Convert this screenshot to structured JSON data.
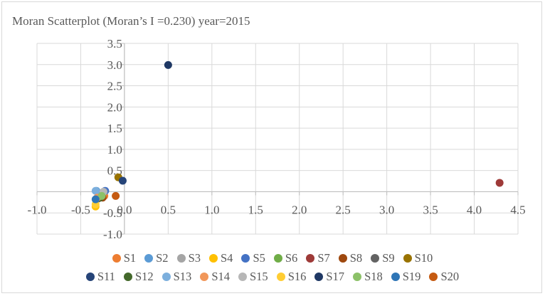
{
  "chart_data": {
    "type": "scatter",
    "title": "Moran Scatterplot (Moran’s I =0.230) year=2015",
    "xlabel": "",
    "ylabel": "",
    "xlim": [
      -1.0,
      4.5
    ],
    "ylim": [
      -1.0,
      3.5
    ],
    "x_ticks": [
      "-1.0",
      "-0.5",
      "0.0",
      "0.5",
      "1.0",
      "1.5",
      "2.0",
      "2.5",
      "3.0",
      "3.5",
      "4.0",
      "4.5"
    ],
    "y_ticks": [
      "3.5",
      "3.0",
      "2.5",
      "2.0",
      "1.5",
      "1.0",
      "0.5",
      "-0.5",
      "-1.0"
    ],
    "x_tick_values": [
      -1.0,
      -0.5,
      0.0,
      0.5,
      1.0,
      1.5,
      2.0,
      2.5,
      3.0,
      3.5,
      4.0,
      4.5
    ],
    "y_tick_values": [
      3.5,
      3.0,
      2.5,
      2.0,
      1.5,
      1.0,
      0.5,
      -0.5,
      -1.0
    ],
    "grid": true,
    "legend_position": "bottom",
    "series": [
      {
        "name": "S1",
        "color": "#ED7D31",
        "x": -0.23,
        "y": -0.1
      },
      {
        "name": "S2",
        "color": "#5B9BD5",
        "x": -0.32,
        "y": 0.02
      },
      {
        "name": "S3",
        "color": "#A5A5A5",
        "x": -0.3,
        "y": -0.12
      },
      {
        "name": "S4",
        "color": "#FFC000",
        "x": -0.33,
        "y": -0.35
      },
      {
        "name": "S5",
        "color": "#4472C4",
        "x": -0.22,
        "y": 0.02
      },
      {
        "name": "S6",
        "color": "#70AD47",
        "x": -0.27,
        "y": -0.12
      },
      {
        "name": "S7",
        "color": "#9E3A38",
        "x": 4.29,
        "y": 0.21
      },
      {
        "name": "S8",
        "color": "#9E480E",
        "x": -0.25,
        "y": -0.14
      },
      {
        "name": "S9",
        "color": "#636363",
        "x": -0.3,
        "y": -0.16
      },
      {
        "name": "S10",
        "color": "#997300",
        "x": -0.07,
        "y": 0.34
      },
      {
        "name": "S11",
        "color": "#264478",
        "x": -0.02,
        "y": 0.26
      },
      {
        "name": "S12",
        "color": "#43682B",
        "x": -0.28,
        "y": -0.14
      },
      {
        "name": "S13",
        "color": "#7CAFDD",
        "x": -0.33,
        "y": 0.02
      },
      {
        "name": "S14",
        "color": "#F1975A",
        "x": -0.31,
        "y": -0.14
      },
      {
        "name": "S15",
        "color": "#B7B7B7",
        "x": -0.24,
        "y": 0.0
      },
      {
        "name": "S16",
        "color": "#FFCD33",
        "x": -0.33,
        "y": -0.3
      },
      {
        "name": "S17",
        "color": "#1F3864",
        "x": 0.5,
        "y": 2.99
      },
      {
        "name": "S18",
        "color": "#8CC168",
        "x": -0.26,
        "y": -0.1
      },
      {
        "name": "S19",
        "color": "#2E75B6",
        "x": -0.33,
        "y": -0.18
      },
      {
        "name": "S20",
        "color": "#C55A11",
        "x": -0.1,
        "y": -0.1
      }
    ]
  }
}
